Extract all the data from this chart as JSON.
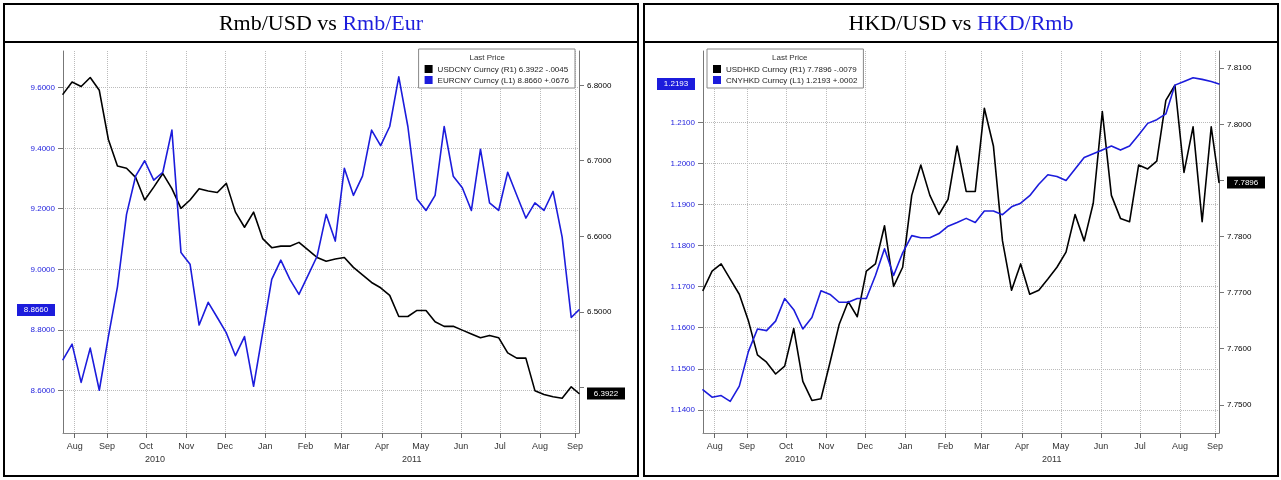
{
  "chart_data": [
    {
      "type": "line",
      "title": "Rmb/USD vs Rmb/Eur",
      "legend_title": "Last Price",
      "legend": "top right",
      "grid": true,
      "marker": "none",
      "line_style": "solid",
      "x": [
        "2010-08-12",
        "2010-08-19",
        "2010-08-26",
        "2010-09-02",
        "2010-09-09",
        "2010-09-16",
        "2010-09-23",
        "2010-09-30",
        "2010-10-07",
        "2010-10-14",
        "2010-10-21",
        "2010-10-28",
        "2010-11-04",
        "2010-11-11",
        "2010-11-18",
        "2010-11-25",
        "2010-12-02",
        "2010-12-09",
        "2010-12-16",
        "2010-12-23",
        "2010-12-30",
        "2011-01-06",
        "2011-01-13",
        "2011-01-20",
        "2011-01-27",
        "2011-02-03",
        "2011-02-10",
        "2011-02-17",
        "2011-02-24",
        "2011-03-03",
        "2011-03-10",
        "2011-03-17",
        "2011-03-24",
        "2011-03-31",
        "2011-04-07",
        "2011-04-14",
        "2011-04-21",
        "2011-04-28",
        "2011-05-05",
        "2011-05-12",
        "2011-05-19",
        "2011-05-26",
        "2011-06-02",
        "2011-06-09",
        "2011-06-16",
        "2011-06-23",
        "2011-06-30",
        "2011-07-07",
        "2011-07-14",
        "2011-07-21",
        "2011-07-28",
        "2011-08-04",
        "2011-08-11",
        "2011-08-18",
        "2011-08-25",
        "2011-09-01",
        "2011-09-08",
        "2011-09-14"
      ],
      "series": [
        {
          "name": "USDCNY Curncy (R1) 6.3922 -.0045",
          "color": "#000000",
          "axis": "y2",
          "values": [
            6.788,
            6.804,
            6.798,
            6.81,
            6.793,
            6.728,
            6.693,
            6.69,
            6.678,
            6.648,
            6.665,
            6.683,
            6.663,
            6.637,
            6.648,
            6.663,
            6.66,
            6.658,
            6.67,
            6.632,
            6.612,
            6.632,
            6.597,
            6.585,
            6.587,
            6.587,
            6.592,
            6.582,
            6.572,
            6.567,
            6.57,
            6.572,
            6.559,
            6.549,
            6.539,
            6.532,
            6.522,
            6.494,
            6.494,
            6.502,
            6.502,
            6.487,
            6.481,
            6.481,
            6.476,
            6.471,
            6.466,
            6.469,
            6.466,
            6.446,
            6.439,
            6.439,
            6.396,
            6.391,
            6.388,
            6.386,
            6.401,
            6.3922
          ]
        },
        {
          "name": "EURCNY Curncy (L1) 8.8660 +.0676",
          "color": "#1c1cdc",
          "values": [
            8.702,
            8.753,
            8.627,
            8.74,
            8.601,
            8.778,
            8.942,
            9.181,
            9.307,
            9.358,
            9.294,
            9.32,
            9.459,
            9.055,
            9.017,
            8.816,
            8.891,
            8.841,
            8.79,
            8.715,
            8.778,
            8.614,
            8.79,
            8.967,
            9.03,
            8.967,
            8.917,
            8.98,
            9.043,
            9.181,
            9.093,
            9.333,
            9.244,
            9.307,
            9.459,
            9.408,
            9.471,
            9.635,
            9.471,
            9.232,
            9.194,
            9.244,
            9.471,
            9.307,
            9.269,
            9.194,
            9.396,
            9.219,
            9.194,
            9.32,
            9.244,
            9.169,
            9.219,
            9.194,
            9.257,
            9.106,
            8.841,
            8.866
          ]
        }
      ],
      "xlim": [
        "2010-08-12",
        "2011-09-14"
      ],
      "xticks": [
        {
          "value": "2010-08-21",
          "label": "Aug"
        },
        {
          "value": "2010-09-15",
          "label": "Sep"
        },
        {
          "value": "2010-10-15",
          "label": "Oct"
        },
        {
          "value": "2010-11-15",
          "label": "Nov"
        },
        {
          "value": "2010-12-15",
          "label": "Dec"
        },
        {
          "value": "2011-01-15",
          "label": "Jan"
        },
        {
          "value": "2011-02-15",
          "label": "Feb"
        },
        {
          "value": "2011-03-15",
          "label": "Mar"
        },
        {
          "value": "2011-04-15",
          "label": "Apr"
        },
        {
          "value": "2011-05-15",
          "label": "May"
        },
        {
          "value": "2011-06-15",
          "label": "Jun"
        },
        {
          "value": "2011-07-15",
          "label": "Jul"
        },
        {
          "value": "2011-08-15",
          "label": "Aug"
        },
        {
          "value": "2011-09-11",
          "label": "Sep"
        }
      ],
      "x2lim": [
        "2010-08-12",
        "2011-09-14"
      ],
      "x2ticks": [
        {
          "value": "2010-10-22",
          "label": "2010"
        },
        {
          "value": "2011-05-08",
          "label": "2011"
        }
      ],
      "ylim": [
        8.46,
        9.72
      ],
      "yticks": [
        {
          "value": 8.6,
          "label": "8.6000"
        },
        {
          "value": 8.8,
          "label": "8.8000"
        },
        {
          "value": 9.0,
          "label": "9.0000"
        },
        {
          "value": 9.2,
          "label": "9.2000"
        },
        {
          "value": 9.4,
          "label": "9.4000"
        },
        {
          "value": 9.6,
          "label": "9.6000"
        }
      ],
      "y2lim": [
        6.34,
        6.845
      ],
      "y2ticks": [
        {
          "value": 6.4,
          "label": null
        },
        {
          "value": 6.5,
          "label": "6.5000"
        },
        {
          "value": 6.6,
          "label": "6.6000"
        },
        {
          "value": 6.7,
          "label": "6.7000"
        },
        {
          "value": 6.8,
          "label": "6.8000"
        }
      ],
      "annotations": [
        "6.3922",
        "8.8660"
      ]
    },
    {
      "type": "line",
      "title": "HKD/USD vs HKD/Rmb",
      "legend_title": "Last Price",
      "legend": "top left",
      "grid": true,
      "marker": "none",
      "line_style": "solid",
      "x": [
        "2010-08-12",
        "2010-08-19",
        "2010-08-26",
        "2010-09-02",
        "2010-09-09",
        "2010-09-16",
        "2010-09-23",
        "2010-09-30",
        "2010-10-07",
        "2010-10-14",
        "2010-10-21",
        "2010-10-28",
        "2010-11-04",
        "2010-11-11",
        "2010-11-18",
        "2010-11-25",
        "2010-12-02",
        "2010-12-09",
        "2010-12-16",
        "2010-12-23",
        "2010-12-30",
        "2011-01-06",
        "2011-01-13",
        "2011-01-20",
        "2011-01-27",
        "2011-02-03",
        "2011-02-10",
        "2011-02-17",
        "2011-02-24",
        "2011-03-03",
        "2011-03-10",
        "2011-03-17",
        "2011-03-24",
        "2011-03-31",
        "2011-04-07",
        "2011-04-14",
        "2011-04-21",
        "2011-04-28",
        "2011-05-05",
        "2011-05-12",
        "2011-05-19",
        "2011-05-26",
        "2011-06-02",
        "2011-06-09",
        "2011-06-16",
        "2011-06-23",
        "2011-06-30",
        "2011-07-07",
        "2011-07-14",
        "2011-07-21",
        "2011-07-28",
        "2011-08-04",
        "2011-08-11",
        "2011-08-18",
        "2011-08-25",
        "2011-09-01",
        "2011-09-08",
        "2011-09-14"
      ],
      "series": [
        {
          "name": "USDHKD Curncy (R1) 7.7896 -.0079",
          "color": "#000000",
          "axis": "y2",
          "values": [
            7.7704,
            7.7738,
            7.7751,
            7.7724,
            7.7697,
            7.765,
            7.7589,
            7.7576,
            7.7555,
            7.7569,
            7.7636,
            7.7542,
            7.7508,
            7.7511,
            7.7576,
            7.7643,
            7.7684,
            7.7657,
            7.7738,
            7.7751,
            7.7819,
            7.7711,
            7.7745,
            7.7873,
            7.7927,
            7.7873,
            7.7839,
            7.7866,
            7.7961,
            7.788,
            7.788,
            7.8028,
            7.7961,
            7.7792,
            7.7704,
            7.7751,
            7.7697,
            7.7704,
            7.7724,
            7.7745,
            7.7772,
            7.7839,
            7.7792,
            7.7859,
            7.8022,
            7.7873,
            7.7832,
            7.7826,
            7.7927,
            7.792,
            7.7934,
            7.8042,
            7.8069,
            7.7914,
            7.7995,
            7.7826,
            7.7995,
            7.7896
          ]
        },
        {
          "name": "CNYHKD Curncy (L1) 1.2193 +.0002",
          "color": "#1c1cdc",
          "values": [
            1.1449,
            1.1431,
            1.1435,
            1.1421,
            1.1458,
            1.1542,
            1.1597,
            1.1593,
            1.1616,
            1.1671,
            1.1644,
            1.1597,
            1.1625,
            1.169,
            1.1681,
            1.1662,
            1.1662,
            1.1671,
            1.1671,
            1.1727,
            1.1792,
            1.1727,
            1.1782,
            1.1824,
            1.1819,
            1.1819,
            1.1829,
            1.1847,
            1.1856,
            1.1866,
            1.1856,
            1.1884,
            1.1884,
            1.1875,
            1.1894,
            1.1903,
            1.1921,
            1.1949,
            1.1972,
            1.1968,
            1.1958,
            1.1986,
            1.2014,
            1.2023,
            1.2032,
            1.2042,
            1.2032,
            1.2042,
            1.2069,
            1.2097,
            1.2106,
            1.212,
            1.219,
            1.2199,
            1.2208,
            1.2204,
            1.2199,
            1.2193
          ]
        }
      ],
      "xlim": [
        "2010-08-12",
        "2011-09-14"
      ],
      "xticks": [
        {
          "value": "2010-08-21",
          "label": "Aug"
        },
        {
          "value": "2010-09-15",
          "label": "Sep"
        },
        {
          "value": "2010-10-15",
          "label": "Oct"
        },
        {
          "value": "2010-11-15",
          "label": "Nov"
        },
        {
          "value": "2010-12-15",
          "label": "Dec"
        },
        {
          "value": "2011-01-15",
          "label": "Jan"
        },
        {
          "value": "2011-02-15",
          "label": "Feb"
        },
        {
          "value": "2011-03-15",
          "label": "Mar"
        },
        {
          "value": "2011-04-15",
          "label": "Apr"
        },
        {
          "value": "2011-05-15",
          "label": "May"
        },
        {
          "value": "2011-06-15",
          "label": "Jun"
        },
        {
          "value": "2011-07-15",
          "label": "Jul"
        },
        {
          "value": "2011-08-15",
          "label": "Aug"
        },
        {
          "value": "2011-09-11",
          "label": "Sep"
        }
      ],
      "x2lim": [
        "2010-08-12",
        "2011-09-14"
      ],
      "x2ticks": [
        {
          "value": "2010-10-22",
          "label": "2010"
        },
        {
          "value": "2011-05-08",
          "label": "2011"
        }
      ],
      "ylim": [
        1.1344,
        1.2273
      ],
      "yticks": [
        {
          "value": 1.14,
          "label": "1.1400"
        },
        {
          "value": 1.15,
          "label": "1.1500"
        },
        {
          "value": 1.16,
          "label": "1.1600"
        },
        {
          "value": 1.17,
          "label": "1.1700"
        },
        {
          "value": 1.18,
          "label": "1.1800"
        },
        {
          "value": 1.19,
          "label": "1.1900"
        },
        {
          "value": 1.2,
          "label": "1.2000"
        },
        {
          "value": 1.21,
          "label": "1.2100"
        }
      ],
      "y2lim": [
        7.745,
        7.813
      ],
      "y2ticks": [
        {
          "value": 7.75,
          "label": "7.7500"
        },
        {
          "value": 7.76,
          "label": "7.7600"
        },
        {
          "value": 7.77,
          "label": "7.7700"
        },
        {
          "value": 7.78,
          "label": "7.7800"
        },
        {
          "value": 7.79,
          "label": null
        },
        {
          "value": 7.8,
          "label": "7.8000"
        },
        {
          "value": 7.81,
          "label": "7.8100"
        }
      ],
      "annotations": [
        "7.7896",
        "1.2193"
      ]
    }
  ]
}
